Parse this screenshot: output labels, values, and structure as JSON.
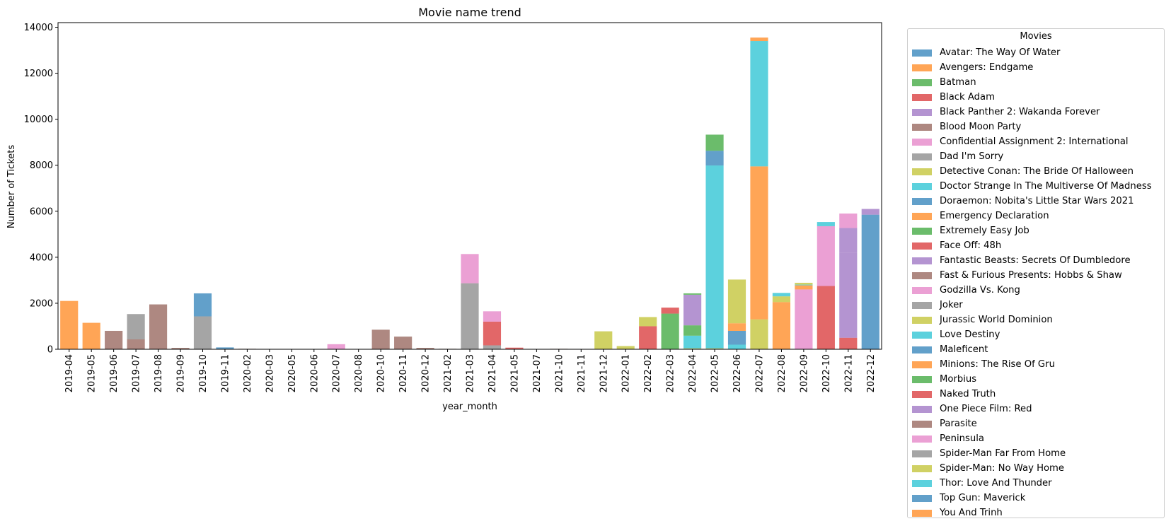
{
  "chart_data": {
    "type": "bar",
    "stacked": true,
    "title": "Movie name trend",
    "xlabel": "year_month",
    "ylabel": "Number of Tickets",
    "ylim": [
      0,
      14200
    ],
    "yticks": [
      0,
      2000,
      4000,
      6000,
      8000,
      10000,
      12000,
      14000
    ],
    "legend_title": "Movies",
    "legend_position": "outside-right",
    "grid": false,
    "categories": [
      "2019-04",
      "2019-05",
      "2019-06",
      "2019-07",
      "2019-08",
      "2019-09",
      "2019-10",
      "2019-11",
      "2020-02",
      "2020-03",
      "2020-05",
      "2020-06",
      "2020-07",
      "2020-08",
      "2020-10",
      "2020-11",
      "2020-12",
      "2021-02",
      "2021-03",
      "2021-04",
      "2021-05",
      "2021-07",
      "2021-10",
      "2021-11",
      "2021-12",
      "2022-01",
      "2022-02",
      "2022-03",
      "2022-04",
      "2022-05",
      "2022-06",
      "2022-07",
      "2022-08",
      "2022-09",
      "2022-10",
      "2022-11",
      "2022-12"
    ],
    "series": [
      {
        "name": "Avatar: The Way Of Water",
        "color": "#1f77b4",
        "values": {
          "2022-12": 5850
        }
      },
      {
        "name": "Avengers: Endgame",
        "color": "#ff7f0e",
        "values": {
          "2019-04": 2100,
          "2019-05": 1150
        }
      },
      {
        "name": "Batman",
        "color": "#2ca02c",
        "values": {
          "2022-03": 1550
        }
      },
      {
        "name": "Black Adam",
        "color": "#d62728",
        "values": {
          "2022-10": 2750,
          "2022-11": 500
        }
      },
      {
        "name": "Black Panther 2: Wakanda Forever",
        "color": "#9467bd",
        "values": {
          "2022-11": 3700,
          "2022-12": 250
        }
      },
      {
        "name": "Blood Moon Party",
        "color": "#8c564b",
        "values": {
          "2020-10": 850,
          "2020-11": 550
        }
      },
      {
        "name": "Confidential Assignment 2: International",
        "color": "#e377c2",
        "values": {
          "2022-09": 2600,
          "2022-10": 2600
        }
      },
      {
        "name": "Dad I'm Sorry",
        "color": "#7f7f7f",
        "values": {
          "2021-03": 2870,
          "2021-04": 170
        }
      },
      {
        "name": "Detective Conan: The Bride Of Halloween",
        "color": "#bcbd22",
        "values": {
          "2022-04": 40,
          "2022-05": 40
        }
      },
      {
        "name": "Doctor Strange In The Multiverse Of Madness",
        "color": "#17becf",
        "values": {
          "2022-04": 550,
          "2022-05": 7950,
          "2022-06": 200
        }
      },
      {
        "name": "Doraemon: Nobita's Little Star Wars 2021",
        "color": "#1f77b4",
        "values": {
          "2022-05": 640,
          "2022-06": 600
        }
      },
      {
        "name": "Emergency Declaration",
        "color": "#ff7f0e",
        "values": {
          "2022-06": 330,
          "2022-08": 2050,
          "2022-09": 180
        }
      },
      {
        "name": "Extremely Easy Job",
        "color": "#2ca02c",
        "values": {
          "2022-04": 450,
          "2022-05": 700
        }
      },
      {
        "name": "Face Off: 48h",
        "color": "#d62728",
        "values": {
          "2021-04": 1030,
          "2021-05": 70,
          "2022-03": 260
        }
      },
      {
        "name": "Fantastic Beasts: Secrets Of Dumbledore",
        "color": "#9467bd",
        "values": {
          "2022-04": 1330
        }
      },
      {
        "name": "Fast & Furious Presents: Hobbs & Shaw",
        "color": "#8c564b",
        "values": {
          "2019-07": 400,
          "2019-08": 1950
        }
      },
      {
        "name": "Godzilla Vs. Kong",
        "color": "#e377c2",
        "values": {
          "2021-03": 1270,
          "2021-04": 450
        }
      },
      {
        "name": "Joker",
        "color": "#7f7f7f",
        "values": {
          "2019-10": 1430
        }
      },
      {
        "name": "Jurassic World Dominion",
        "color": "#bcbd22",
        "values": {
          "2022-06": 1900,
          "2022-07": 1300
        }
      },
      {
        "name": "Love Destiny",
        "color": "#17becf",
        "values": {
          "2022-09": 30,
          "2022-10": 180
        }
      },
      {
        "name": "Maleficent",
        "color": "#1f77b4",
        "values": {
          "2019-10": 1000,
          "2019-11": 80
        }
      },
      {
        "name": "Minions: The Rise Of Gru",
        "color": "#ff7f0e",
        "values": {
          "2022-07": 6650
        }
      },
      {
        "name": "Morbius",
        "color": "#2ca02c",
        "values": {
          "2022-04": 60
        }
      },
      {
        "name": "Naked Truth",
        "color": "#d62728",
        "values": {
          "2022-02": 1000
        }
      },
      {
        "name": "One Piece Film: Red",
        "color": "#9467bd",
        "values": {
          "2022-11": 1070
        }
      },
      {
        "name": "Parasite",
        "color": "#8c564b",
        "values": {
          "2019-06": 800,
          "2019-07": 30,
          "2019-09": 60,
          "2020-02": 20,
          "2020-12": 60,
          "2021-02": 20,
          "2021-10": 20
        }
      },
      {
        "name": "Peninsula",
        "color": "#e377c2",
        "values": {
          "2020-07": 220,
          "2022-11": 630
        }
      },
      {
        "name": "Spider-Man Far From Home",
        "color": "#7f7f7f",
        "values": {
          "2019-07": 1100
        }
      },
      {
        "name": "Spider-Man: No Way Home",
        "color": "#bcbd22",
        "values": {
          "2021-12": 780,
          "2022-01": 140,
          "2022-02": 400,
          "2022-08": 250,
          "2022-09": 80
        }
      },
      {
        "name": "Thor: Love And Thunder",
        "color": "#17becf",
        "values": {
          "2022-07": 5450,
          "2022-08": 150
        }
      },
      {
        "name": "Top Gun: Maverick",
        "color": "#1f77b4",
        "values": {
          "2022-07": 0
        }
      },
      {
        "name": "You And Trinh",
        "color": "#ff7f0e",
        "values": {
          "2022-07": 150
        }
      }
    ]
  }
}
